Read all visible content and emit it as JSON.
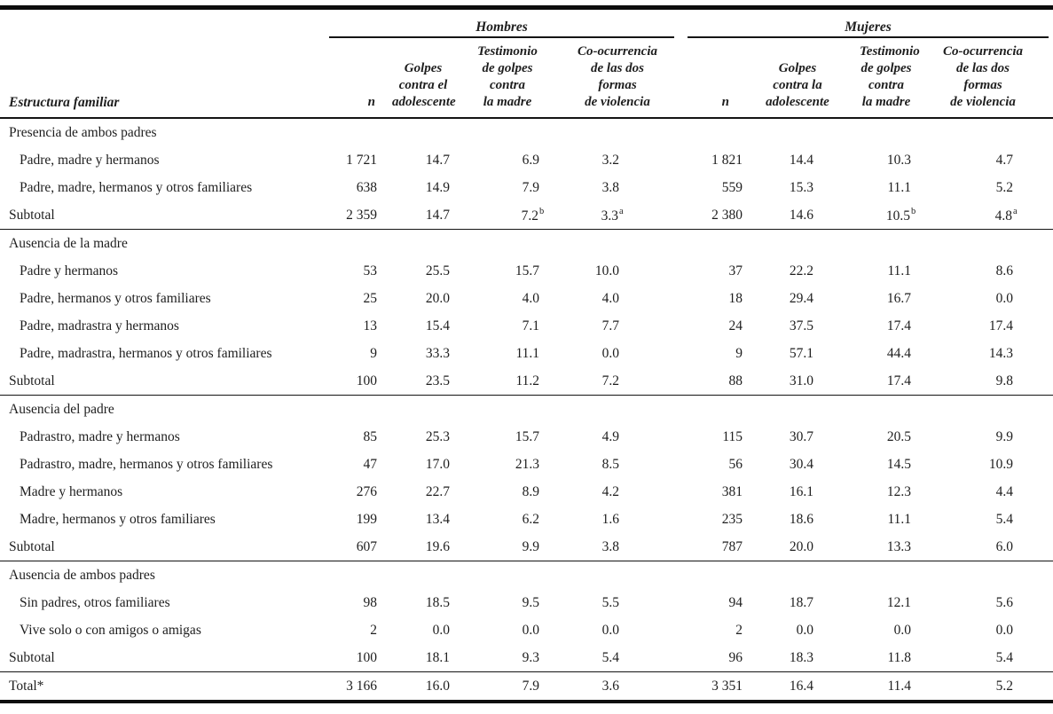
{
  "table": {
    "groups": [
      {
        "label": "Hombres"
      },
      {
        "label": "Mujeres"
      }
    ],
    "columns": [
      {
        "key": "estructura_familiar",
        "label": "Estructura familiar"
      },
      {
        "key": "n_hombres",
        "label": "n"
      },
      {
        "key": "golpes_hombres",
        "label": "Golpes\ncontra el\nadolescente"
      },
      {
        "key": "testimonio_hombres",
        "label": "Testimonio\nde golpes\ncontra\nla madre"
      },
      {
        "key": "coocurrencia_hombres",
        "label": "Co-ocurrencia\nde las dos\nformas\nde violencia"
      },
      {
        "key": "n_mujeres",
        "label": "n"
      },
      {
        "key": "golpes_mujeres",
        "label": "Golpes\ncontra la\nadolescente"
      },
      {
        "key": "testimonio_mujeres",
        "label": "Testimonio\nde golpes\ncontra\nla madre"
      },
      {
        "key": "coocurrencia_mujeres",
        "label": "Co-ocurrencia\nde las dos\nformas\nde violencia"
      }
    ],
    "sections": [
      {
        "header": "Presencia de ambos padres",
        "rows": [
          {
            "label": "Padre, madre y hermanos",
            "values": [
              "1 721",
              "14.7",
              "6.9",
              "3.2",
              "1 821",
              "14.4",
              "10.3",
              "4.7"
            ]
          },
          {
            "label": "Padre, madre, hermanos y otros familiares",
            "values": [
              "638",
              "14.9",
              "7.9",
              "3.8",
              "559",
              "15.3",
              "11.1",
              "5.2"
            ]
          }
        ],
        "subtotal": {
          "label": "Subtotal",
          "values": [
            "2 359",
            "14.7",
            "7.2",
            "3.3",
            "2 380",
            "14.6",
            "10.5",
            "4.8"
          ],
          "sups": [
            "",
            "",
            "b",
            "a",
            "",
            "",
            "b",
            "a"
          ]
        }
      },
      {
        "header": "Ausencia de la madre",
        "rows": [
          {
            "label": "Padre y hermanos",
            "values": [
              "53",
              "25.5",
              "15.7",
              "10.0",
              "37",
              "22.2",
              "11.1",
              "8.6"
            ]
          },
          {
            "label": "Padre, hermanos y otros familiares",
            "values": [
              "25",
              "20.0",
              "4.0",
              "4.0",
              "18",
              "29.4",
              "16.7",
              "0.0"
            ]
          },
          {
            "label": "Padre, madrastra y hermanos",
            "values": [
              "13",
              "15.4",
              "7.1",
              "7.7",
              "24",
              "37.5",
              "17.4",
              "17.4"
            ]
          },
          {
            "label": "Padre, madrastra, hermanos y otros familiares",
            "values": [
              "9",
              "33.3",
              "11.1",
              "0.0",
              "9",
              "57.1",
              "44.4",
              "14.3"
            ]
          }
        ],
        "subtotal": {
          "label": "Subtotal",
          "values": [
            "100",
            "23.5",
            "11.2",
            "7.2",
            "88",
            "31.0",
            "17.4",
            "9.8"
          ]
        }
      },
      {
        "header": "Ausencia del padre",
        "rows": [
          {
            "label": "Padrastro, madre y hermanos",
            "values": [
              "85",
              "25.3",
              "15.7",
              "4.9",
              "115",
              "30.7",
              "20.5",
              "9.9"
            ]
          },
          {
            "label": "Padrastro, madre, hermanos y otros familiares",
            "values": [
              "47",
              "17.0",
              "21.3",
              "8.5",
              "56",
              "30.4",
              "14.5",
              "10.9"
            ]
          },
          {
            "label": "Madre y hermanos",
            "values": [
              "276",
              "22.7",
              "8.9",
              "4.2",
              "381",
              "16.1",
              "12.3",
              "4.4"
            ]
          },
          {
            "label": "Madre, hermanos y otros familiares",
            "values": [
              "199",
              "13.4",
              "6.2",
              "1.6",
              "235",
              "18.6",
              "11.1",
              "5.4"
            ]
          }
        ],
        "subtotal": {
          "label": "Subtotal",
          "values": [
            "607",
            "19.6",
            "9.9",
            "3.8",
            "787",
            "20.0",
            "13.3",
            "6.0"
          ]
        }
      },
      {
        "header": "Ausencia de ambos padres",
        "rows": [
          {
            "label": "Sin padres, otros familiares",
            "values": [
              "98",
              "18.5",
              "9.5",
              "5.5",
              "94",
              "18.7",
              "12.1",
              "5.6"
            ]
          },
          {
            "label": "Vive solo o con amigos o amigas",
            "values": [
              "2",
              "0.0",
              "0.0",
              "0.0",
              "2",
              "0.0",
              "0.0",
              "0.0"
            ]
          }
        ],
        "subtotal": {
          "label": "Subtotal",
          "values": [
            "100",
            "18.1",
            "9.3",
            "5.4",
            "96",
            "18.3",
            "11.8",
            "5.4"
          ]
        }
      }
    ],
    "total": {
      "label": "Total*",
      "values": [
        "3 166",
        "16.0",
        "7.9",
        "3.6",
        "3 351",
        "16.4",
        "11.4",
        "5.2"
      ]
    }
  }
}
